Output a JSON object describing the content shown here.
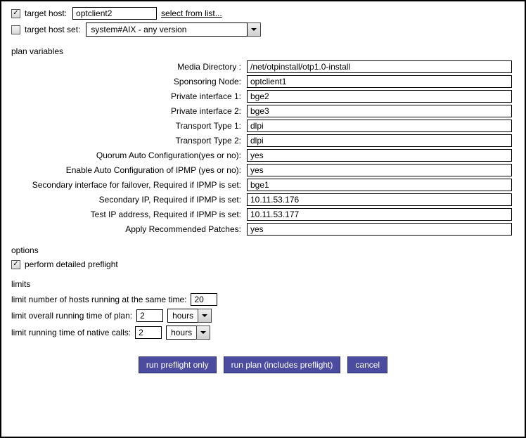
{
  "target_host": {
    "label": "target host:",
    "value": "optclient2",
    "link": "select from list...",
    "checked": true
  },
  "target_host_set": {
    "label": "target host set:",
    "value": "system#AIX - any version",
    "checked": false
  },
  "plan_vars_label": "plan variables",
  "vars": [
    {
      "label": "Media Directory :",
      "value": "/net/otpinstall/otp1.0-install"
    },
    {
      "label": "Sponsoring Node:",
      "value": "optclient1"
    },
    {
      "label": "Private interface 1:",
      "value": "bge2"
    },
    {
      "label": "Private interface 2:",
      "value": "bge3"
    },
    {
      "label": "Transport Type 1:",
      "value": "dlpi"
    },
    {
      "label": "Transport Type 2:",
      "value": "dlpi"
    },
    {
      "label": "Quorum Auto Configuration(yes or no):",
      "value": "yes"
    },
    {
      "label": "Enable Auto Configuration of IPMP (yes or no):",
      "value": "yes"
    },
    {
      "label": "Secondary interface for failover, Required if IPMP is set:",
      "value": "bge1"
    },
    {
      "label": "Secondary IP, Required if IPMP is set:",
      "value": "10.11.53.176"
    },
    {
      "label": "Test IP address, Required if IPMP is set:",
      "value": "10.11.53.177"
    },
    {
      "label": "Apply Recommended Patches:",
      "value": "yes"
    }
  ],
  "options_label": "options",
  "options": {
    "detailed_preflight_label": "perform detailed preflight",
    "detailed_preflight_checked": true
  },
  "limits_label": "limits",
  "limits": {
    "hosts_label": "limit number of hosts running at the same time:",
    "hosts_value": "20",
    "overall_label": "limit overall running time of plan:",
    "overall_value": "2",
    "overall_unit": "hours",
    "native_label": "limit running time of native calls:",
    "native_value": "2",
    "native_unit": "hours"
  },
  "buttons": {
    "preflight": "run preflight only",
    "runplan": "run plan (includes preflight)",
    "cancel": "cancel"
  },
  "colors": {
    "button_bg": "#4b4ba0",
    "button_text": "#ffffff",
    "border": "#000000"
  }
}
